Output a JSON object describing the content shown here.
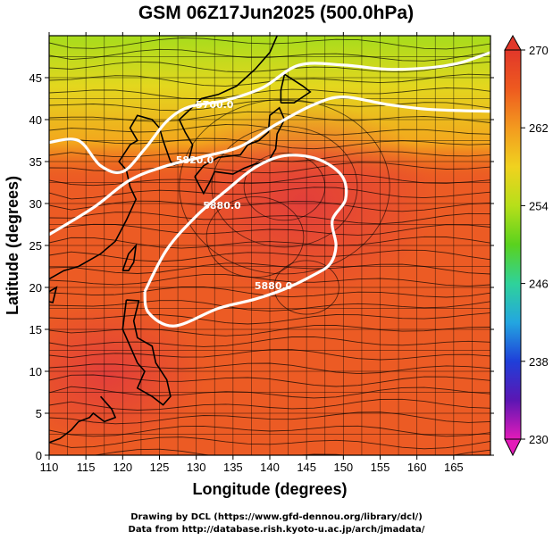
{
  "chart_data": {
    "type": "heatmap",
    "title": "GSM 06Z17Jun2025 (500.0hPa)",
    "xlabel": "Longitude (degrees)",
    "ylabel": "Latitude  (degrees)",
    "xlim": [
      110,
      170
    ],
    "ylim": [
      0,
      50
    ],
    "x_ticks": [
      110,
      115,
      120,
      125,
      130,
      135,
      140,
      145,
      150,
      155,
      160,
      165
    ],
    "y_ticks": [
      0,
      5,
      10,
      15,
      20,
      25,
      30,
      35,
      40,
      45
    ],
    "grid": true,
    "colorbar": {
      "ticks": [
        230,
        238,
        246,
        254,
        262,
        270
      ],
      "range": [
        230,
        270
      ],
      "colors": [
        "#e31bb9",
        "#5b16b3",
        "#1f3fd9",
        "#23a6e0",
        "#2fd29a",
        "#5ad21e",
        "#b7df1a",
        "#f0d21f",
        "#f39a1f",
        "#ee5a1f",
        "#e1372a"
      ]
    },
    "contours": [
      {
        "label": "5700.0",
        "points": [
          [
            110,
            37.3
          ],
          [
            114,
            37.5
          ],
          [
            117,
            34.5
          ],
          [
            120,
            33.8
          ],
          [
            123,
            36.5
          ],
          [
            126,
            39.8
          ],
          [
            129,
            41.5
          ],
          [
            134,
            42.3
          ],
          [
            139,
            43.8
          ],
          [
            144,
            46.5
          ],
          [
            150,
            46.5
          ],
          [
            156,
            46
          ],
          [
            162,
            46.2
          ],
          [
            166,
            46.8
          ],
          [
            170,
            48
          ]
        ]
      },
      {
        "label": "5820.0",
        "points": [
          [
            110,
            26.3
          ],
          [
            116,
            29.5
          ],
          [
            121,
            32.8
          ],
          [
            126,
            34.5
          ],
          [
            131,
            35.6
          ],
          [
            136,
            36.8
          ],
          [
            141,
            39.5
          ],
          [
            146,
            41.8
          ],
          [
            150,
            42.7
          ],
          [
            156,
            41.8
          ],
          [
            162,
            41.2
          ],
          [
            170,
            41
          ]
        ]
      },
      {
        "label": "5880.0",
        "points": [
          [
            123,
            19.5
          ],
          [
            126,
            24.5
          ],
          [
            130,
            28.5
          ],
          [
            134,
            31.5
          ],
          [
            138,
            34.3
          ],
          [
            142,
            35.7
          ],
          [
            146.5,
            35.3
          ],
          [
            149.8,
            33.3
          ],
          [
            150.3,
            30.5
          ],
          [
            148.5,
            28
          ],
          [
            149,
            25
          ],
          [
            148.2,
            22.8
          ],
          [
            146,
            21.5
          ],
          [
            142,
            19.8
          ],
          [
            138,
            18.6
          ],
          [
            133,
            17.5
          ],
          [
            127,
            15.4
          ],
          [
            123.5,
            17
          ],
          [
            123,
            19.5
          ]
        ]
      }
    ],
    "contour_labels": [
      {
        "text": "5700.0",
        "x": 132.5,
        "y": 41.8
      },
      {
        "text": "5820.0",
        "x": 129.8,
        "y": 35.2
      },
      {
        "text": "5880.0",
        "x": 133.5,
        "y": 29.8
      },
      {
        "text": "5880.0",
        "x": 140.5,
        "y": 20.2
      }
    ],
    "field_description_note": null
  },
  "credits": {
    "line1": "Drawing by DCL (https://www.gfd-dennou.org/library/dcl/)",
    "line2": "Data from http://database.rish.kyoto-u.ac.jp/arch/jmadata/"
  }
}
